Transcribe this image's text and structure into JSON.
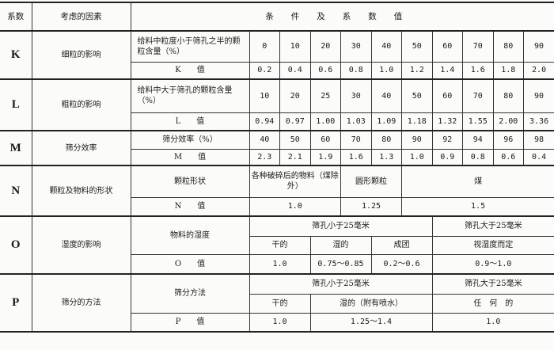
{
  "header": {
    "coef": "系数",
    "factor": "考虑的因素",
    "conditions": "条件及系数值"
  },
  "K": {
    "symbol": "K",
    "factor": "细粒的影响",
    "cond_label": "给料中粒度小于筛孔之半的颗粒含量（%）",
    "value_label": "K　　值",
    "conds": [
      "0",
      "10",
      "20",
      "30",
      "40",
      "50",
      "60",
      "70",
      "80",
      "90"
    ],
    "values": [
      "0.2",
      "0.4",
      "0.6",
      "0.8",
      "1.0",
      "1.2",
      "1.4",
      "1.6",
      "1.8",
      "2.0"
    ]
  },
  "L": {
    "symbol": "L",
    "factor": "粗粒的影响",
    "cond_label": "给料中大于筛孔的颗粒含量（%）",
    "value_label": "L　　值",
    "conds": [
      "10",
      "20",
      "25",
      "30",
      "40",
      "50",
      "60",
      "70",
      "80",
      "90"
    ],
    "values": [
      "0.94",
      "0.97",
      "1.00",
      "1.03",
      "1.09",
      "1.18",
      "1.32",
      "1.55",
      "2.00",
      "3.36"
    ]
  },
  "M": {
    "symbol": "M",
    "factor": "筛分效率",
    "cond_label": "筛分效率（%）",
    "value_label": "M　　值",
    "conds": [
      "40",
      "50",
      "60",
      "70",
      "80",
      "90",
      "92",
      "94",
      "96",
      "98"
    ],
    "values": [
      "2.3",
      "2.1",
      "1.9",
      "1.6",
      "1.3",
      "1.0",
      "0.9",
      "0.8",
      "0.6",
      "0.4"
    ]
  },
  "N": {
    "symbol": "N",
    "factor": "颗粒及物料的形状",
    "cond_label": "颗粒形状",
    "value_label": "N　　值",
    "conds": [
      "各种破碎后的物料（煤除外）",
      "圆形颗粒",
      "煤"
    ],
    "values": [
      "1.0",
      "1.25",
      "1.5"
    ]
  },
  "O": {
    "symbol": "O",
    "factor": "湿度的影响",
    "cond_label": "物料的湿度",
    "value_label": "O　　值",
    "group_small": "筛孔小于25毫米",
    "group_large": "筛孔大于25毫米",
    "conds": [
      "干的",
      "湿的",
      "成团",
      "视湿度而定"
    ],
    "values": [
      "1.0",
      "0.75～0.85",
      "0.2～0.6",
      "0.9～1.0"
    ]
  },
  "P": {
    "symbol": "P",
    "factor": "筛分的方法",
    "cond_label": "筛分方法",
    "value_label": "P　　值",
    "group_small": "筛孔小于25毫米",
    "group_large": "筛孔大于25毫米",
    "conds": [
      "干的",
      "湿的（附有喷水）",
      "任　何　的"
    ],
    "values": [
      "1.0",
      "1.25～1.4",
      "1.0"
    ]
  }
}
